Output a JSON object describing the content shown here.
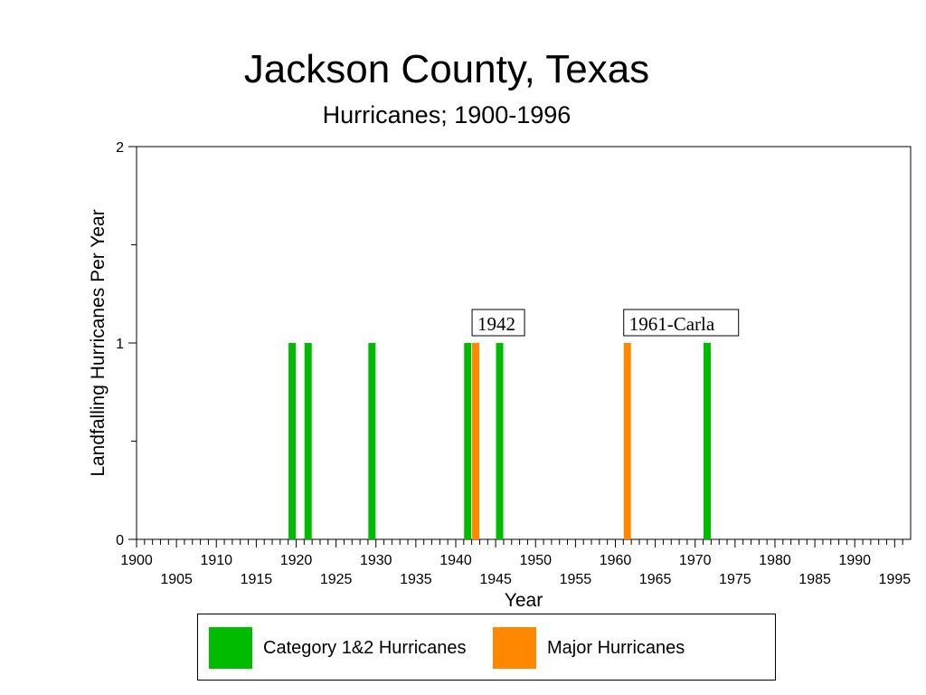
{
  "chart_data": {
    "type": "bar",
    "title": "Jackson County, Texas",
    "subtitle": "Hurricanes;  1900-1996",
    "xlabel": "Year",
    "ylabel": "Landfalling Hurricanes Per Year",
    "xlim": [
      1900,
      1996
    ],
    "ylim": [
      0,
      2
    ],
    "y_ticks": [
      0,
      1,
      2
    ],
    "x_tick_labels": [
      1900,
      1905,
      1910,
      1915,
      1920,
      1925,
      1930,
      1935,
      1940,
      1945,
      1950,
      1955,
      1960,
      1965,
      1970,
      1975,
      1980,
      1985,
      1990,
      1995
    ],
    "grid": false,
    "legend_position": "bottom",
    "series": [
      {
        "name": "Category 1&2 Hurricanes",
        "color": "#00bb00",
        "points": [
          {
            "x": 1919,
            "y": 1
          },
          {
            "x": 1921,
            "y": 1
          },
          {
            "x": 1929,
            "y": 1
          },
          {
            "x": 1941,
            "y": 1
          },
          {
            "x": 1945,
            "y": 1
          },
          {
            "x": 1971,
            "y": 1
          }
        ]
      },
      {
        "name": "Major Hurricanes",
        "color": "#ff8800",
        "points": [
          {
            "x": 1942,
            "y": 1
          },
          {
            "x": 1961,
            "y": 1
          }
        ]
      }
    ],
    "annotations": [
      {
        "text": "1942",
        "x": 1942
      },
      {
        "text": "1961-Carla",
        "x": 1961
      }
    ]
  }
}
